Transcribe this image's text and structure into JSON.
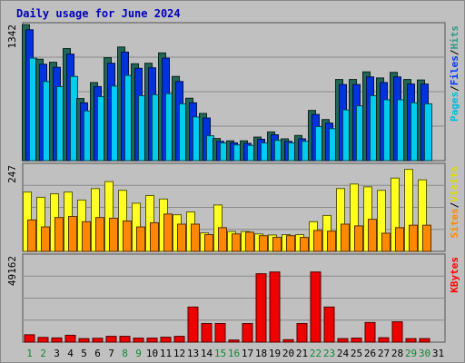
{
  "chart_data": {
    "title": "Daily usage for June 2024",
    "days": [
      "1",
      "2",
      "3",
      "4",
      "5",
      "6",
      "7",
      "8",
      "9",
      "10",
      "11",
      "12",
      "13",
      "14",
      "15",
      "16",
      "17",
      "18",
      "19",
      "20",
      "21",
      "22",
      "23",
      "24",
      "25",
      "26",
      "27",
      "28",
      "29",
      "30",
      "31"
    ],
    "weekend_days": [
      "1",
      "2",
      "8",
      "9",
      "15",
      "16",
      "22",
      "23",
      "29",
      "30"
    ],
    "panels": [
      {
        "type": "bar",
        "name": "hits-files-pages",
        "ymax_label": "1342",
        "ymax": 1342,
        "right_labels": [
          {
            "text": "Pages",
            "color": "#00bbdd"
          },
          {
            "text": "/",
            "color": "#000000"
          },
          {
            "text": "Files",
            "color": "#0033ff"
          },
          {
            "text": "/",
            "color": "#000000"
          },
          {
            "text": "Hits",
            "color": "#339988"
          }
        ],
        "series": [
          {
            "name": "Hits",
            "color": "#226655",
            "values": [
              1340,
              1000,
              970,
              1105,
              612,
              770,
              1015,
              1120,
              955,
              960,
              1062,
              830,
              615,
              465,
              218,
              195,
              195,
              232,
              283,
              215,
              248,
              495,
              405,
              800,
              800,
              875,
              815,
              870,
              800,
              795,
              0
            ]
          },
          {
            "name": "Files",
            "color": "#0033dd",
            "values": [
              1290,
              950,
              920,
              1050,
              570,
              730,
              960,
              1070,
              910,
              915,
              1010,
              780,
              570,
              420,
              190,
              175,
              170,
              210,
              255,
              190,
              215,
              455,
              370,
              750,
              750,
              825,
              770,
              825,
              755,
              755,
              0
            ]
          },
          {
            "name": "Pages",
            "color": "#00ccee",
            "values": [
              1010,
              780,
              730,
              830,
              490,
              630,
              735,
              840,
              640,
              650,
              660,
              560,
              430,
              245,
              175,
              155,
              150,
              175,
              200,
              175,
              190,
              335,
              315,
              500,
              540,
              640,
              600,
              600,
              570,
              560,
              0
            ]
          }
        ]
      },
      {
        "type": "bar",
        "name": "visits-sites",
        "ymax_label": "247",
        "ymax": 247,
        "right_labels": [
          {
            "text": "Sites",
            "color": "#ff8800"
          },
          {
            "text": "/",
            "color": "#000000"
          },
          {
            "text": "Visits",
            "color": "#dddd00"
          }
        ],
        "series": [
          {
            "name": "Visits",
            "color": "#ffff22",
            "values": [
              170,
              155,
              165,
              170,
              147,
              180,
              200,
              175,
              138,
              160,
              150,
              105,
              113,
              53,
              133,
              57,
              57,
              50,
              47,
              48,
              48,
              85,
              103,
              180,
              193,
              185,
              175,
              210,
              235,
              205,
              0
            ]
          },
          {
            "name": "Sites",
            "color": "#ff8800",
            "values": [
              90,
              70,
              97,
              100,
              85,
              97,
              95,
              87,
              70,
              82,
              107,
              78,
              78,
              48,
              68,
              50,
              55,
              45,
              40,
              45,
              40,
              60,
              58,
              78,
              73,
              92,
              52,
              68,
              75,
              75,
              0
            ]
          }
        ]
      },
      {
        "type": "bar",
        "name": "kbytes",
        "ymax_label": "49162",
        "ymax": 49162,
        "right_labels": [
          {
            "text": "KBytes",
            "color": "#ff0000"
          }
        ],
        "series": [
          {
            "name": "KBytes",
            "color": "#ee0000",
            "values": [
              4200,
              2700,
              2400,
              3900,
              2000,
              2200,
              3300,
              3300,
              2300,
              2300,
              2800,
              3300,
              20000,
              10600,
              10600,
              1200,
              10600,
              39000,
              40000,
              1400,
              10600,
              40000,
              20000,
              2000,
              2300,
              11200,
              2500,
              11600,
              2000,
              2000,
              0
            ]
          }
        ]
      }
    ]
  }
}
